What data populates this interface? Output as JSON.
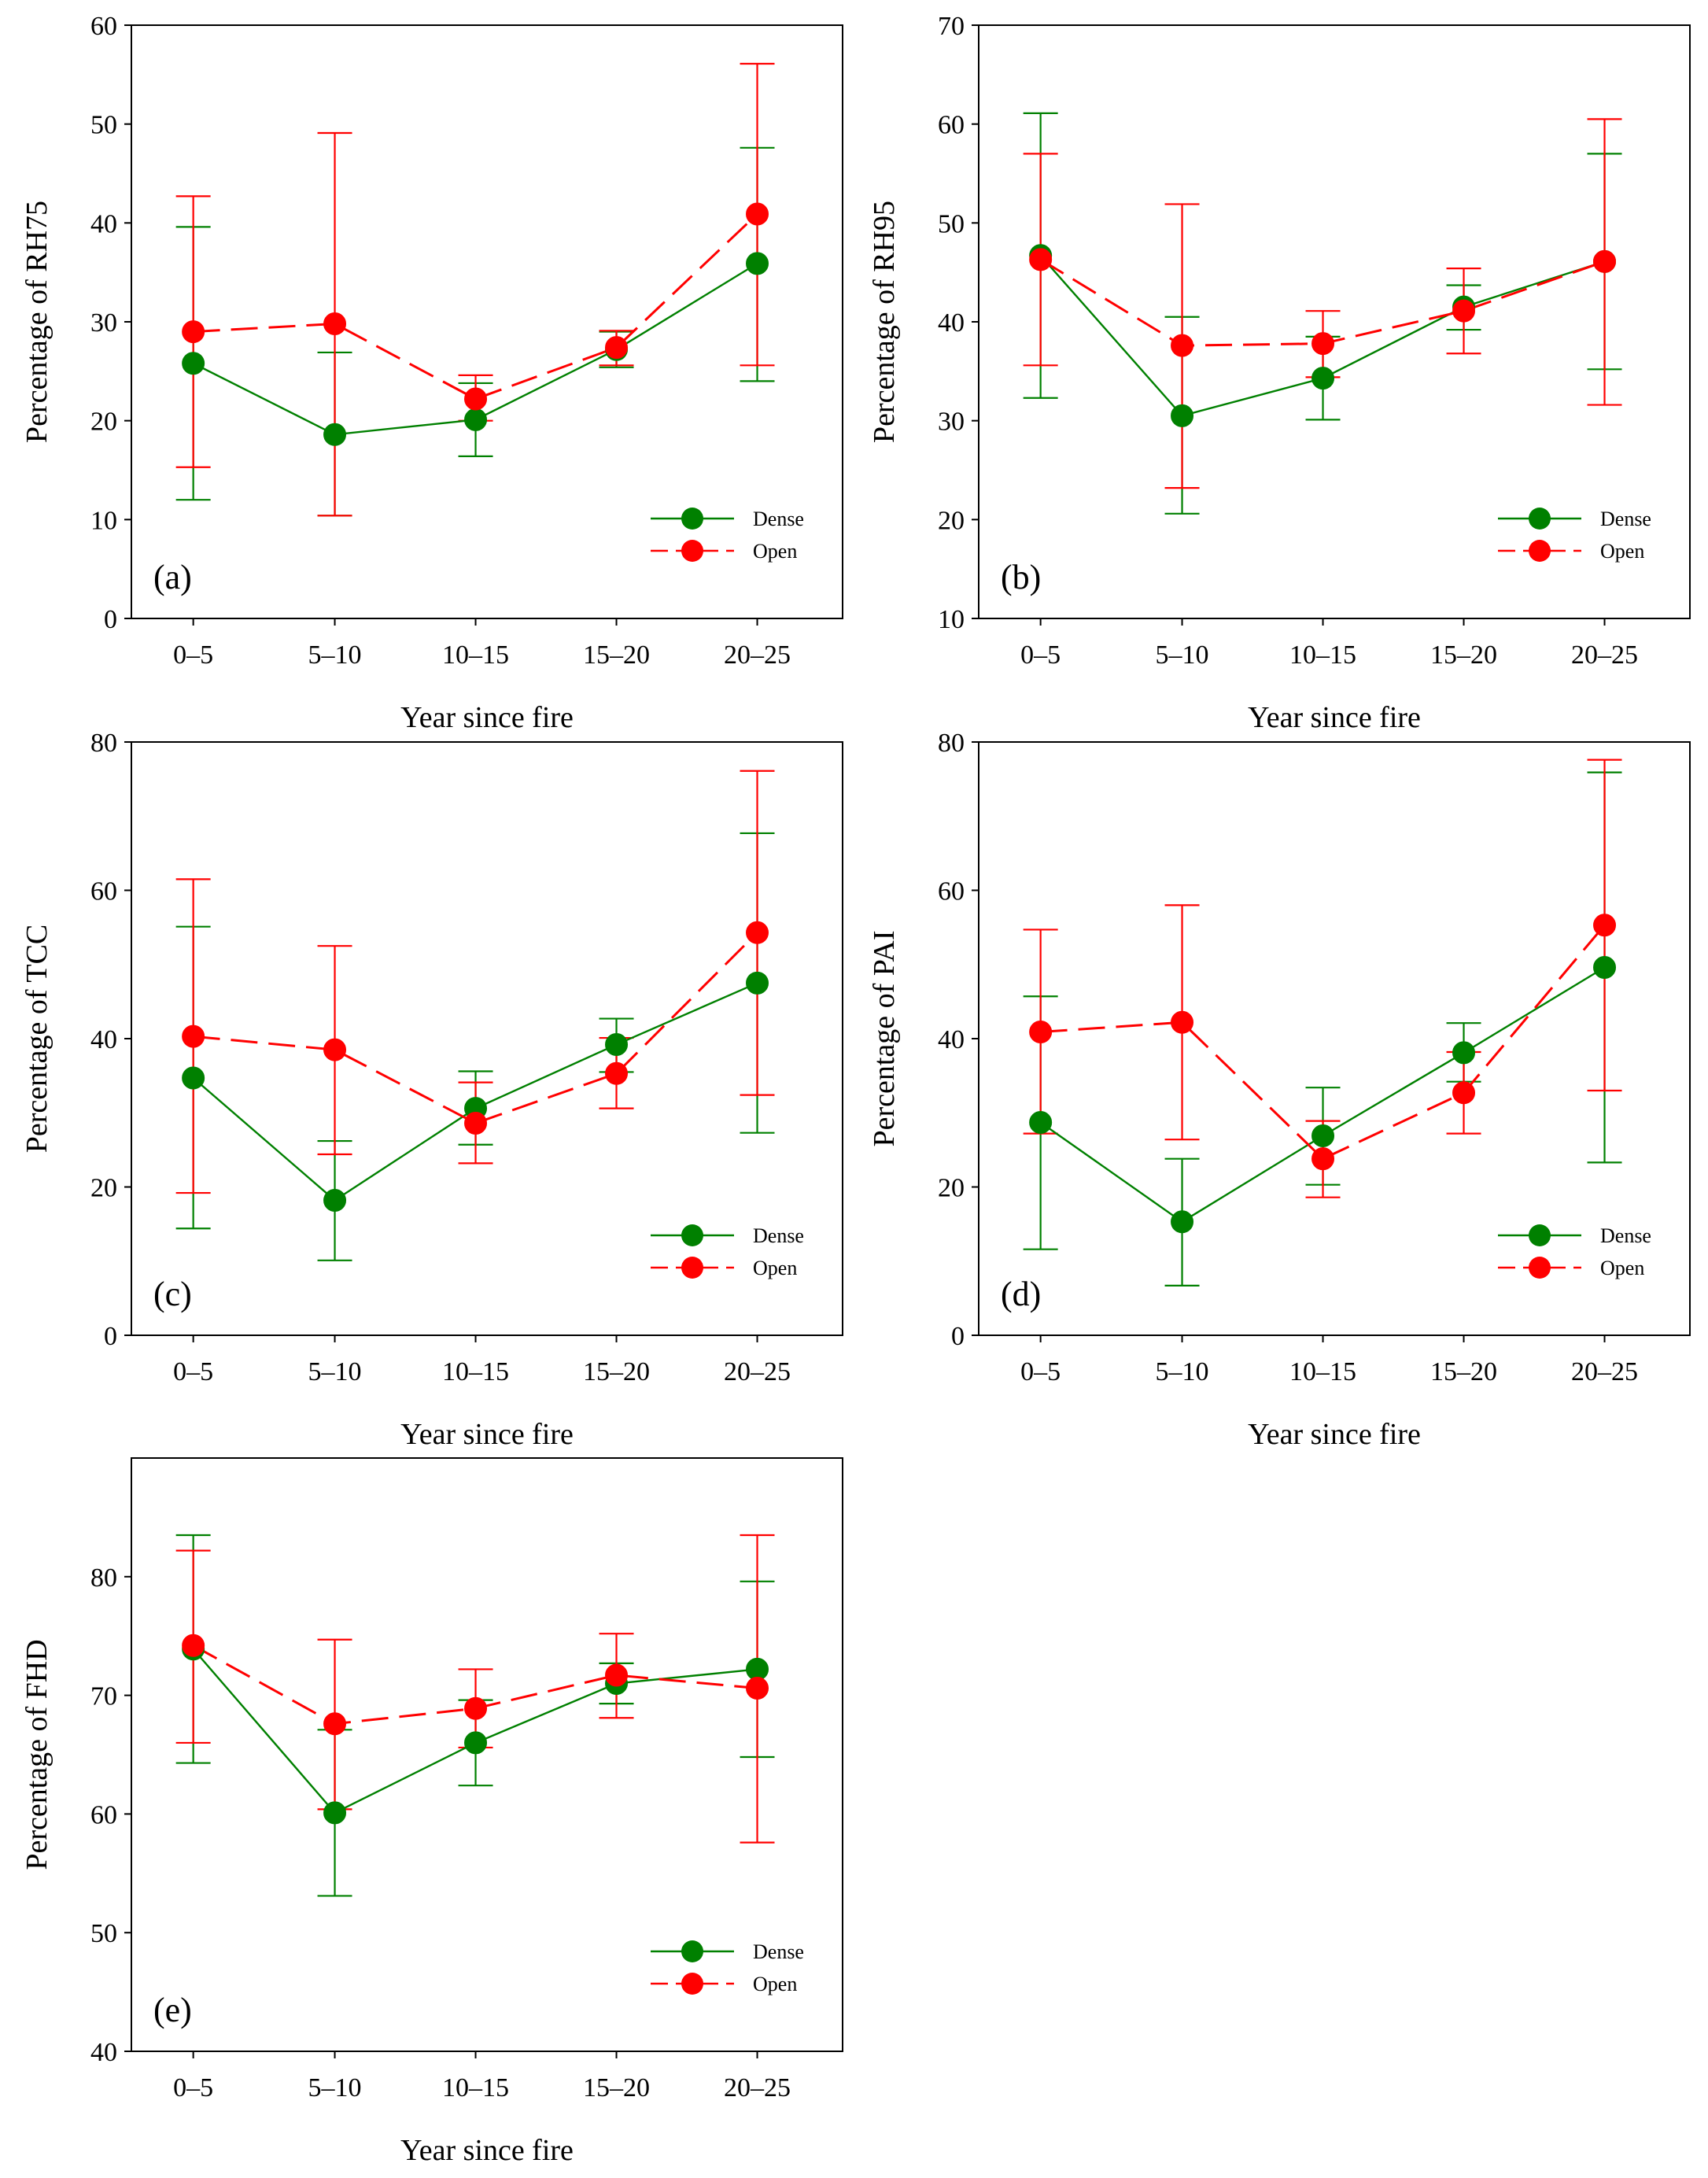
{
  "figure": {
    "colors": {
      "dense": "#008000",
      "open": "#ff0000",
      "frame": "#000000"
    }
  },
  "chart_data": [
    {
      "type": "line",
      "label": "(a)",
      "xlabel": "Year since fire",
      "ylabel": "Percentage of RH75",
      "categories": [
        "0–5",
        "5–10",
        "10–15",
        "15–20",
        "20–25"
      ],
      "ylim": [
        0,
        60
      ],
      "yticks": [
        "0",
        "10",
        "20",
        "30",
        "40",
        "50",
        "60"
      ],
      "legend": {
        "position": "bottom-right",
        "entries": [
          "Dense",
          "Open"
        ]
      },
      "series": [
        {
          "name": "Dense",
          "style": "solid",
          "values": [
            25.8,
            18.6,
            20.1,
            27.2,
            35.9
          ],
          "err_low": [
            12.0,
            10.4,
            16.4,
            25.4,
            24.0
          ],
          "err_high": [
            39.6,
            26.9,
            23.8,
            29.0,
            47.6
          ]
        },
        {
          "name": "Open",
          "style": "dashed",
          "values": [
            29.0,
            29.8,
            22.2,
            27.4,
            40.9
          ],
          "err_low": [
            15.3,
            10.4,
            20.0,
            25.6,
            25.6
          ],
          "err_high": [
            42.7,
            49.1,
            24.6,
            29.1,
            56.1
          ]
        }
      ]
    },
    {
      "type": "line",
      "label": "(b)",
      "xlabel": "Year since fire",
      "ylabel": "Percentage of RH95",
      "categories": [
        "0–5",
        "5–10",
        "10–15",
        "15–20",
        "20–25"
      ],
      "ylim": [
        10,
        70
      ],
      "yticks": [
        "10",
        "20",
        "30",
        "40",
        "50",
        "60",
        "70"
      ],
      "legend": {
        "position": "bottom-right",
        "entries": [
          "Dense",
          "Open"
        ]
      },
      "series": [
        {
          "name": "Dense",
          "style": "solid",
          "values": [
            46.7,
            30.5,
            34.3,
            41.5,
            46.1
          ],
          "err_low": [
            32.3,
            20.6,
            30.1,
            39.2,
            35.2
          ],
          "err_high": [
            61.1,
            40.5,
            38.5,
            43.7,
            57.0
          ]
        },
        {
          "name": "Open",
          "style": "dashed",
          "values": [
            46.3,
            37.6,
            37.8,
            41.1,
            46.1
          ],
          "err_low": [
            35.6,
            23.2,
            34.4,
            36.8,
            31.6
          ],
          "err_high": [
            57.0,
            51.9,
            41.1,
            45.4,
            60.5
          ]
        }
      ]
    },
    {
      "type": "line",
      "label": "(c)",
      "xlabel": "Year since fire",
      "ylabel": "Percentage of TCC",
      "categories": [
        "0–5",
        "5–10",
        "10–15",
        "15–20",
        "20–25"
      ],
      "ylim": [
        0,
        80
      ],
      "yticks": [
        "0",
        "20",
        "40",
        "60",
        "80"
      ],
      "legend": {
        "position": "bottom-right",
        "entries": [
          "Dense",
          "Open"
        ]
      },
      "series": [
        {
          "name": "Dense",
          "style": "solid",
          "values": [
            34.7,
            18.2,
            30.6,
            39.2,
            47.5
          ],
          "err_low": [
            14.4,
            10.1,
            25.7,
            35.5,
            27.3
          ],
          "err_high": [
            55.1,
            26.2,
            35.6,
            42.7,
            67.7
          ]
        },
        {
          "name": "Open",
          "style": "dashed",
          "values": [
            40.3,
            38.5,
            28.6,
            35.3,
            54.3
          ],
          "err_low": [
            19.2,
            24.4,
            23.2,
            30.6,
            32.4
          ],
          "err_high": [
            61.5,
            52.5,
            34.1,
            40.1,
            76.1
          ]
        }
      ]
    },
    {
      "type": "line",
      "label": "(d)",
      "xlabel": "Year since fire",
      "ylabel": "Percentage of PAI",
      "categories": [
        "0–5",
        "5–10",
        "10–15",
        "15–20",
        "20–25"
      ],
      "ylim": [
        0,
        80
      ],
      "yticks": [
        "0",
        "20",
        "40",
        "60",
        "80"
      ],
      "legend": {
        "position": "bottom-right",
        "entries": [
          "Dense",
          "Open"
        ]
      },
      "series": [
        {
          "name": "Dense",
          "style": "solid",
          "values": [
            28.7,
            15.3,
            26.9,
            38.1,
            49.6
          ],
          "err_low": [
            11.6,
            6.7,
            20.3,
            34.2,
            23.3
          ],
          "err_high": [
            45.7,
            23.8,
            33.4,
            42.1,
            75.9
          ]
        },
        {
          "name": "Open",
          "style": "dashed",
          "values": [
            40.9,
            42.2,
            23.8,
            32.7,
            55.3
          ],
          "err_low": [
            27.2,
            26.4,
            18.6,
            27.2,
            33.0
          ],
          "err_high": [
            54.7,
            58.0,
            28.9,
            38.2,
            77.6
          ]
        }
      ]
    },
    {
      "type": "line",
      "label": "(e)",
      "xlabel": "Year since fire",
      "ylabel": "Percentage of FHD",
      "categories": [
        "0–5",
        "5–10",
        "10–15",
        "15–20",
        "20–25"
      ],
      "ylim": [
        40,
        90
      ],
      "yticks": [
        "40",
        "50",
        "60",
        "70",
        "80"
      ],
      "legend": {
        "position": "bottom-right",
        "entries": [
          "Dense",
          "Open"
        ]
      },
      "series": [
        {
          "name": "Dense",
          "style": "solid",
          "values": [
            73.9,
            60.1,
            66.0,
            71.0,
            72.2
          ],
          "err_low": [
            64.3,
            53.1,
            62.4,
            69.3,
            64.8
          ],
          "err_high": [
            83.5,
            67.1,
            69.6,
            72.7,
            79.6
          ]
        },
        {
          "name": "Open",
          "style": "dashed",
          "values": [
            74.2,
            67.6,
            68.9,
            71.7,
            70.6
          ],
          "err_low": [
            66.0,
            60.4,
            65.6,
            68.1,
            57.6
          ],
          "err_high": [
            82.2,
            74.7,
            72.2,
            75.2,
            83.5
          ]
        }
      ]
    }
  ]
}
